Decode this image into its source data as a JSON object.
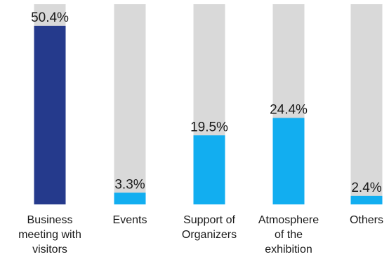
{
  "chart_data": {
    "type": "bar",
    "title": "",
    "xlabel": "",
    "ylabel": "",
    "ylim": [
      0,
      60
    ],
    "value_suffix": "%",
    "categories": [
      "Business meeting with visitors",
      "Events",
      "Support of Organizers",
      "Atmosphere of the exhibition",
      "Others"
    ],
    "category_lines": [
      [
        "Business",
        "meeting with",
        "visitors"
      ],
      [
        "Events"
      ],
      [
        "Support of",
        "Organizers"
      ],
      [
        "Atmosphere",
        "of the",
        "exhibition"
      ],
      [
        "Others"
      ]
    ],
    "values": [
      50.4,
      3.3,
      19.5,
      24.4,
      2.4
    ],
    "value_labels": [
      "50.4%",
      "3.3%",
      "19.5%",
      "24.4%",
      "2.4%"
    ],
    "highlight_index": 0,
    "colors": {
      "highlight": "#253a8c",
      "bar": "#12aef0",
      "track": "#d9d9d9"
    },
    "grid": false,
    "legend": "none"
  }
}
